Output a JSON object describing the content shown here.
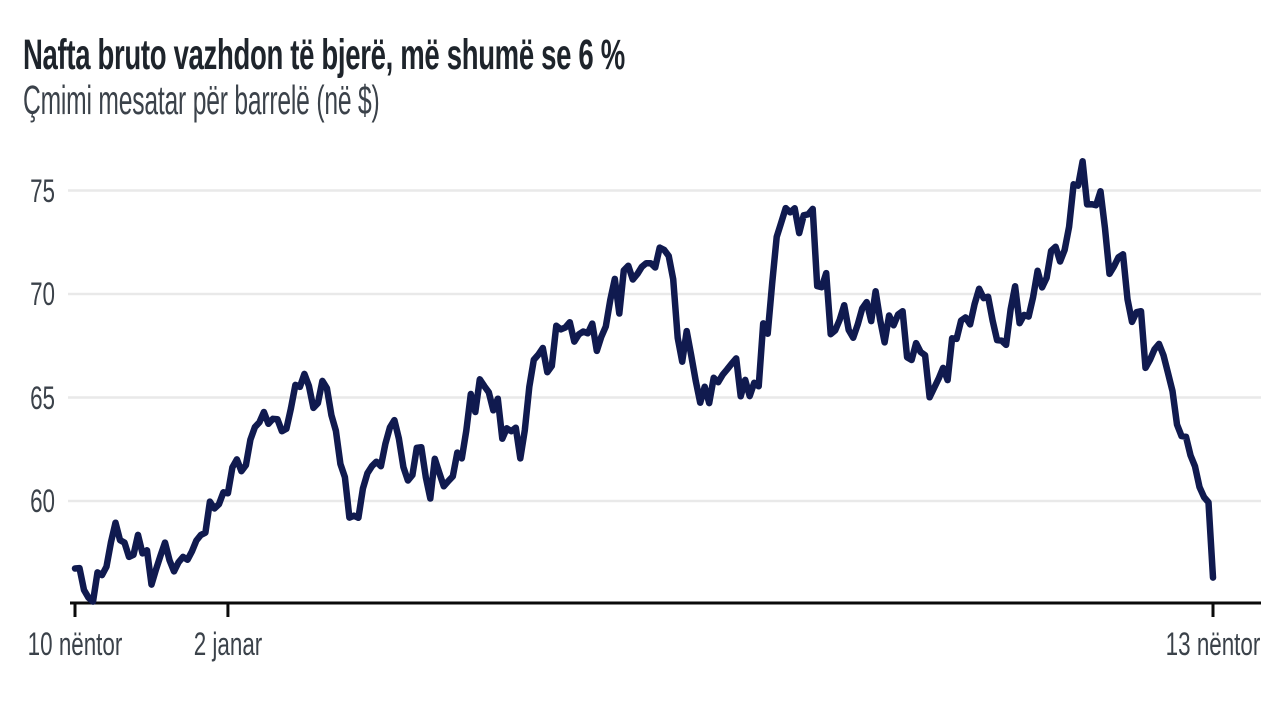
{
  "header": {
    "title": "Nafta bruto vazhdon të bjerë, më shumë se 6 %",
    "subtitle": "Çmimi mesatar për barrelë (në $)"
  },
  "colors": {
    "background": "#ffffff",
    "line": "#101a4f",
    "grid": "#e9e9e9",
    "axis": "#0a0a0a",
    "title_text": "#1e242b",
    "label_text": "#3b424a"
  },
  "chart_data": {
    "type": "line",
    "title": "Nafta bruto vazhdon të bjerë, më shumë se 6 %",
    "subtitle": "Çmimi mesatar për barrelë (në $)",
    "xlabel": "",
    "ylabel": "Çmimi mesatar për barrelë (në $)",
    "grid": "horizontal",
    "legend": "none",
    "y_ticks": [
      60,
      65,
      70,
      75
    ],
    "ylim": [
      55,
      77.5
    ],
    "x_ticks": [
      {
        "label": "10 nëntor",
        "index": 0
      },
      {
        "label": "2 janar",
        "index": 34
      },
      {
        "label": "13 nëntor",
        "index": 253
      }
    ],
    "values": [
      56.74,
      56.76,
      55.7,
      55.33,
      55.14,
      56.55,
      56.42,
      56.83,
      58.02,
      58.95,
      58.11,
      57.99,
      57.3,
      57.4,
      58.36,
      57.47,
      57.62,
      55.96,
      56.69,
      57.36,
      57.99,
      57.14,
      56.6,
      57.04,
      57.3,
      57.16,
      57.56,
      58.09,
      58.36,
      58.47,
      59.97,
      59.64,
      59.84,
      60.42,
      60.37,
      61.63,
      62.01,
      61.44,
      61.73,
      62.96,
      63.57,
      63.8,
      64.3,
      63.73,
      63.97,
      63.95,
      63.37,
      63.49,
      64.47,
      65.61,
      65.51,
      66.14,
      65.56,
      64.5,
      64.73,
      65.8,
      65.45,
      64.15,
      63.39,
      61.79,
      61.15,
      59.2,
      59.29,
      59.19,
      60.6,
      61.34,
      61.68,
      61.9,
      61.68,
      62.77,
      63.55,
      63.91,
      63.01,
      61.64,
      60.99,
      61.25,
      62.57,
      62.6,
      61.15,
      60.12,
      62.04,
      61.36,
      60.71,
      60.96,
      61.19,
      62.34,
      62.06,
      63.4,
      65.17,
      64.3,
      65.88,
      65.55,
      65.25,
      64.38,
      64.94,
      63.01,
      63.51,
      63.37,
      63.54,
      62.06,
      63.42,
      65.51,
      66.82,
      67.07,
      67.39,
      66.22,
      66.52,
      68.47,
      68.29,
      68.38,
      68.64,
      67.7,
      68.05,
      68.19,
      68.1,
      68.57,
      67.25,
      67.93,
      68.43,
      69.72,
      70.73,
      69.06,
      71.14,
      71.36,
      70.7,
      70.96,
      71.31,
      71.49,
      71.49,
      71.28,
      72.24,
      72.13,
      71.84,
      70.71,
      67.88,
      66.73,
      68.21,
      67.04,
      65.81,
      64.75,
      65.52,
      64.73,
      65.95,
      65.74,
      66.1,
      66.36,
      66.64,
      66.89,
      65.06,
      65.85,
      65.07,
      65.71,
      65.54,
      68.58,
      68.08,
      70.53,
      72.76,
      73.45,
      74.15,
      73.94,
      74.14,
      72.94,
      73.8,
      73.85,
      74.11,
      70.38,
      70.33,
      71.01,
      68.06,
      68.24,
      68.76,
      69.46,
      68.26,
      67.89,
      68.52,
      69.3,
      69.61,
      68.69,
      70.13,
      68.76,
      67.66,
      68.96,
      68.49,
      69.01,
      69.17,
      66.94,
      66.81,
      67.63,
      67.2,
      67.04,
      65.01,
      65.46,
      65.91,
      66.43,
      65.84,
      67.86,
      67.83,
      68.72,
      68.87,
      68.53,
      69.51,
      70.25,
      69.8,
      69.87,
      68.72,
      67.77,
      67.75,
      67.54,
      69.25,
      70.37,
      68.59,
      68.99,
      68.91,
      69.85,
      71.12,
      70.32,
      70.78,
      72.08,
      72.28,
      71.57,
      72.12,
      73.25,
      75.3,
      75.23,
      76.41,
      74.33,
      74.34,
      74.29,
      74.96,
      73.17,
      70.97,
      71.34,
      71.78,
      71.92,
      69.75,
      68.65,
      69.12,
      69.17,
      66.43,
      66.82,
      67.33,
      67.59,
      67.04,
      66.18,
      65.31,
      63.69,
      63.14,
      63.1,
      62.21,
      61.67,
      60.67,
      60.19,
      59.93,
      56.3
    ]
  }
}
